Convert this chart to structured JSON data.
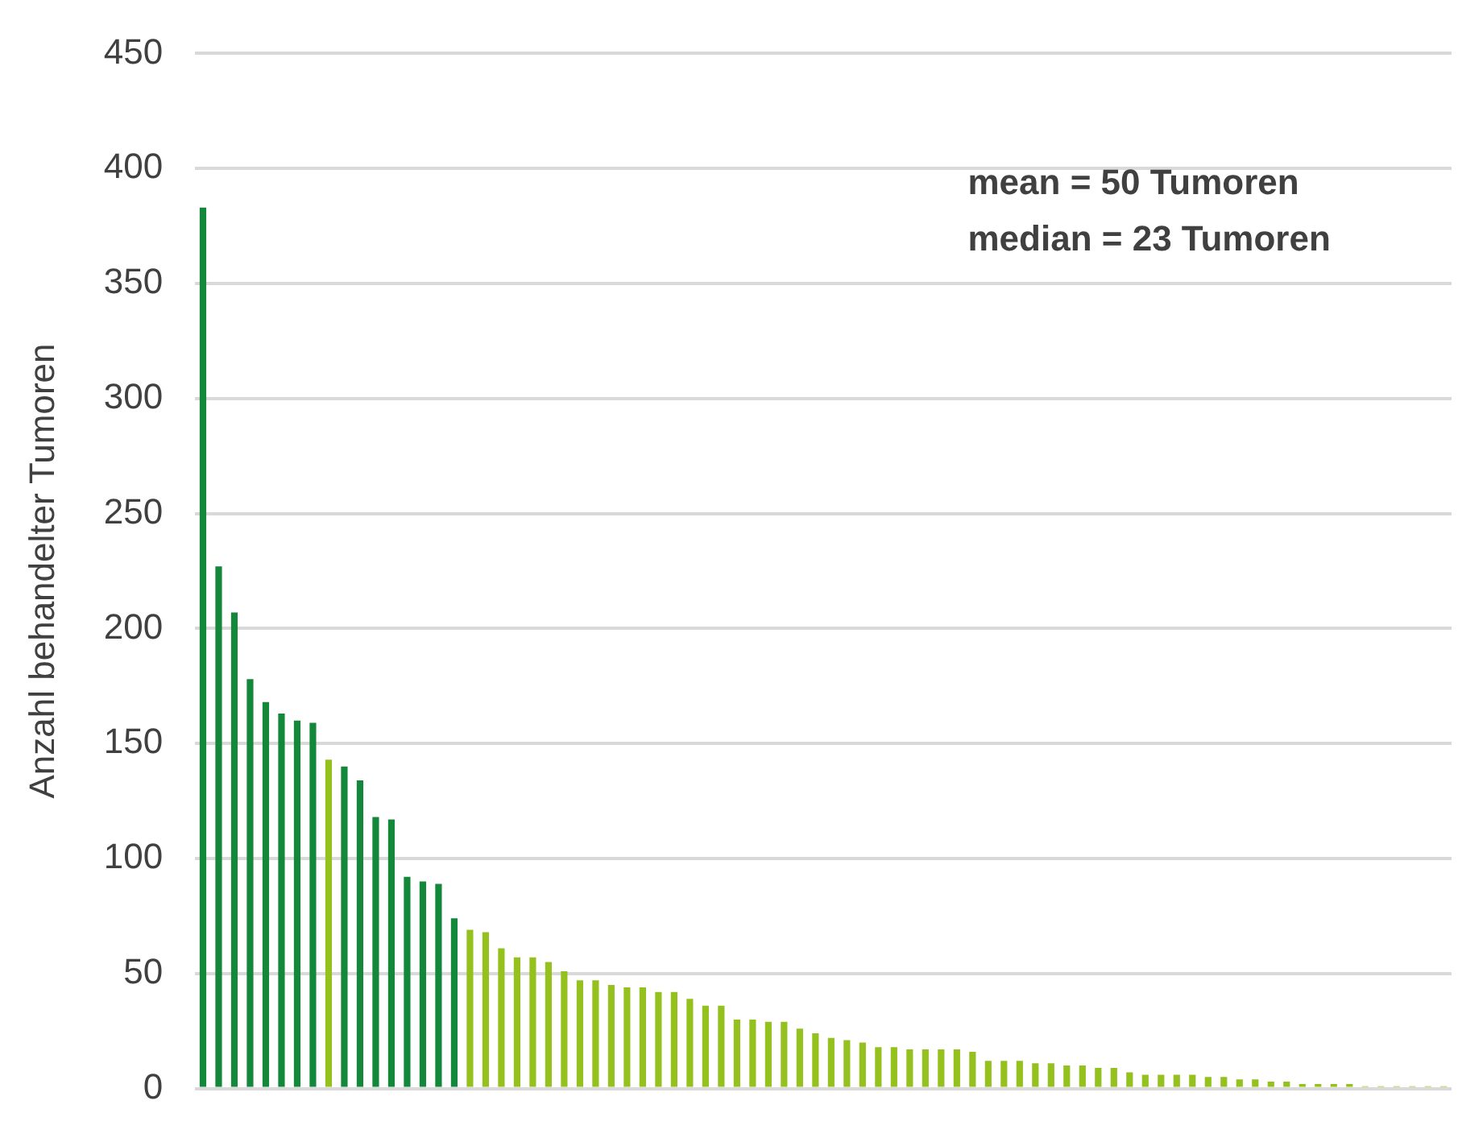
{
  "chart_data": {
    "type": "bar",
    "ylabel": "Anzahl behandelter Tumoren",
    "annotations": [
      "mean = 50 Tumoren",
      "median = 23 Tumoren"
    ],
    "categories": [
      null,
      null,
      null,
      null,
      null,
      null,
      null,
      null,
      null,
      null,
      null,
      null,
      null,
      null,
      null,
      null,
      null,
      null,
      null,
      null,
      null,
      null,
      null,
      null,
      null,
      null,
      null,
      null,
      null,
      null,
      null,
      null,
      null,
      null,
      null,
      null,
      null,
      null,
      null,
      null,
      null,
      null,
      null,
      null,
      null,
      null,
      null,
      null,
      null,
      null,
      null,
      null,
      null,
      null,
      null,
      null,
      null,
      null,
      null,
      null,
      null,
      null,
      null,
      null,
      null,
      null,
      null,
      null,
      null,
      null,
      null,
      null,
      null,
      null,
      null,
      null,
      null,
      null,
      null,
      null
    ],
    "values": [
      383,
      227,
      207,
      178,
      168,
      163,
      160,
      159,
      143,
      140,
      134,
      118,
      117,
      92,
      90,
      89,
      74,
      69,
      68,
      61,
      57,
      57,
      55,
      51,
      47,
      47,
      45,
      44,
      44,
      42,
      42,
      39,
      36,
      36,
      30,
      30,
      29,
      29,
      26,
      24,
      22,
      21,
      20,
      18,
      18,
      17,
      17,
      17,
      17,
      16,
      12,
      12,
      12,
      11,
      11,
      10,
      10,
      9,
      9,
      7,
      6,
      6,
      6,
      6,
      5,
      5,
      4,
      4,
      3,
      3,
      2,
      2,
      2,
      2,
      1,
      1,
      1,
      1,
      1,
      1
    ],
    "colors": [
      "#13873a",
      "#13873a",
      "#13873a",
      "#13873a",
      "#13873a",
      "#13873a",
      "#13873a",
      "#13873a",
      "#95c11f",
      "#13873a",
      "#13873a",
      "#13873a",
      "#13873a",
      "#13873a",
      "#13873a",
      "#13873a",
      "#13873a",
      "#95c11f",
      "#95c11f",
      "#95c11f",
      "#95c11f",
      "#95c11f",
      "#95c11f",
      "#95c11f",
      "#95c11f",
      "#95c11f",
      "#95c11f",
      "#95c11f",
      "#95c11f",
      "#95c11f",
      "#95c11f",
      "#95c11f",
      "#95c11f",
      "#95c11f",
      "#95c11f",
      "#95c11f",
      "#95c11f",
      "#95c11f",
      "#95c11f",
      "#95c11f",
      "#95c11f",
      "#95c11f",
      "#95c11f",
      "#95c11f",
      "#95c11f",
      "#95c11f",
      "#95c11f",
      "#95c11f",
      "#95c11f",
      "#95c11f",
      "#95c11f",
      "#95c11f",
      "#95c11f",
      "#95c11f",
      "#95c11f",
      "#95c11f",
      "#95c11f",
      "#95c11f",
      "#95c11f",
      "#95c11f",
      "#95c11f",
      "#95c11f",
      "#95c11f",
      "#95c11f",
      "#95c11f",
      "#95c11f",
      "#95c11f",
      "#95c11f",
      "#95c11f",
      "#95c11f",
      "#95c11f",
      "#95c11f",
      "#95c11f",
      "#95c11f",
      "#95c11f",
      "#95c11f",
      "#95c11f",
      "#95c11f",
      "#95c11f",
      "#95c11f"
    ],
    "ylim": [
      0,
      450
    ],
    "yticks": [
      0,
      50,
      100,
      150,
      200,
      250,
      300,
      350,
      400,
      450
    ],
    "grid": "y",
    "legend": false,
    "tick_labels": "y"
  }
}
